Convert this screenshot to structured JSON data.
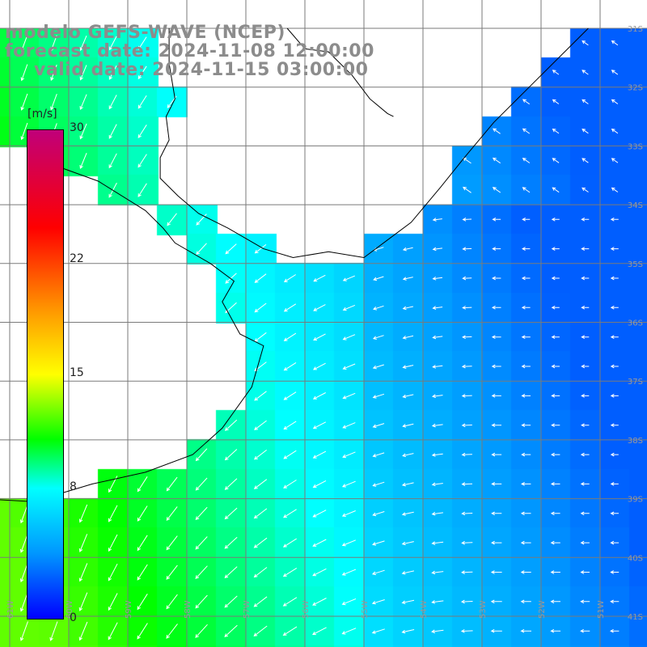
{
  "title": {
    "model": "modelo GEFS-WAVE (NCEP)",
    "forecast": "forecast date: 2024-11-08 12:00:00",
    "valid": "valid date: 2024-11-15 03:00:00"
  },
  "colorbar": {
    "units": "[m/s]",
    "ticks": [
      "30",
      "22",
      "15",
      "8",
      "0"
    ],
    "tick_values": [
      30,
      22,
      15,
      8,
      0
    ],
    "min": 0,
    "max": 30,
    "stops": [
      {
        "v": 0,
        "color": "#0000ff"
      },
      {
        "v": 4,
        "color": "#0096ff"
      },
      {
        "v": 8,
        "color": "#00ffff"
      },
      {
        "v": 11,
        "color": "#00ff00"
      },
      {
        "v": 15,
        "color": "#ffff00"
      },
      {
        "v": 19,
        "color": "#ff9600"
      },
      {
        "v": 24,
        "color": "#ff0000"
      },
      {
        "v": 30,
        "color": "#c0007a"
      }
    ]
  },
  "map": {
    "lat_labels": [
      "31S",
      "32S",
      "33S",
      "34S",
      "35S",
      "36S",
      "37S",
      "38S",
      "39S",
      "40S",
      "41S"
    ],
    "lon_labels": [
      "61W",
      "60W",
      "59W",
      "58W",
      "57W",
      "56W",
      "55W",
      "54W",
      "53W",
      "52W",
      "51W"
    ],
    "lon_range": [
      -61.5,
      -50.5
    ],
    "lat_range": [
      -31.25,
      -41.25
    ],
    "grid": true,
    "land_color": "#ffffff",
    "grid_color": "#7a7a7a",
    "coast_color": "#000000",
    "arrow_color": "#ffffff"
  }
}
